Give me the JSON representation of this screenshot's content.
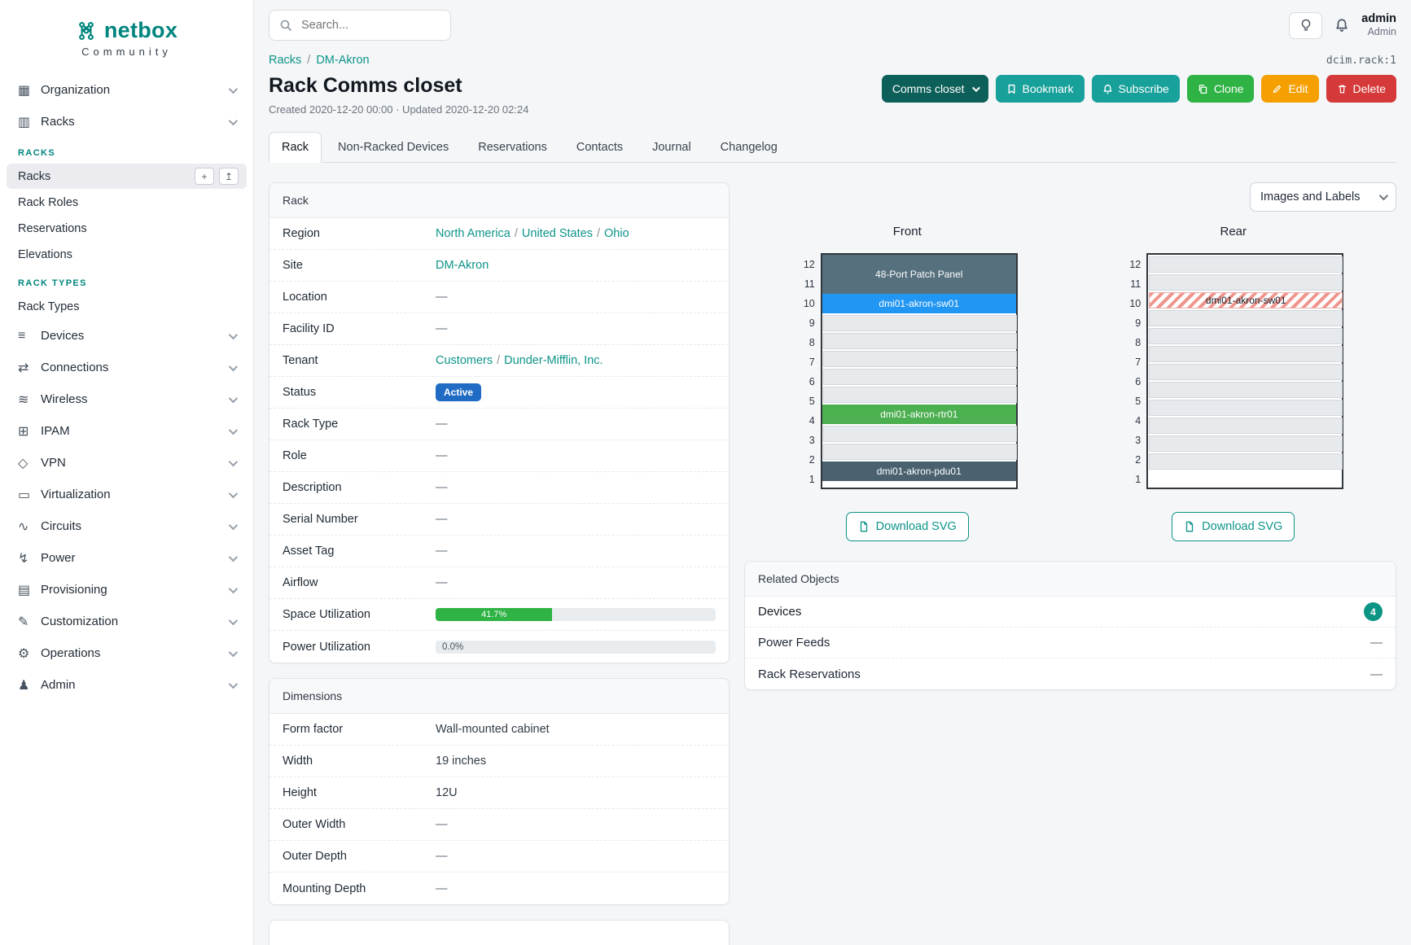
{
  "theme": {
    "brand_teal": "#00857e",
    "link_teal": "#0d9488",
    "status_active_blue": "#206bc4",
    "progress_green": "#2fb344",
    "button_dark_teal": "#0d5f59",
    "button_teal": "#18a09a",
    "button_green": "#2eb344",
    "button_orange": "#f59f00",
    "button_red": "#d63939",
    "device_count_badge": "#0c9485"
  },
  "brand": {
    "name": "netbox",
    "tagline": "Community"
  },
  "topbar": {
    "search_placeholder": "Search...",
    "user_name": "admin",
    "user_role": "Admin"
  },
  "sidebar": {
    "items": [
      {
        "label": "Organization",
        "icon": "▦"
      },
      {
        "label": "Racks",
        "icon": "▥"
      },
      {
        "label": "Devices",
        "icon": "≡"
      },
      {
        "label": "Connections",
        "icon": "⇄"
      },
      {
        "label": "Wireless",
        "icon": "≋"
      },
      {
        "label": "IPAM",
        "icon": "⊞"
      },
      {
        "label": "VPN",
        "icon": "◇"
      },
      {
        "label": "Virtualization",
        "icon": "▭"
      },
      {
        "label": "Circuits",
        "icon": "∿"
      },
      {
        "label": "Power",
        "icon": "↯"
      },
      {
        "label": "Provisioning",
        "icon": "▤"
      },
      {
        "label": "Customization",
        "icon": "✎"
      },
      {
        "label": "Operations",
        "icon": "⚙"
      },
      {
        "label": "Admin",
        "icon": "♟"
      }
    ],
    "racks_section": {
      "heading": "RACKS",
      "items": [
        {
          "label": "Racks",
          "active": true
        },
        {
          "label": "Rack Roles"
        },
        {
          "label": "Reservations"
        },
        {
          "label": "Elevations"
        }
      ],
      "add_glyph": "+",
      "import_glyph": "↥"
    },
    "rack_types_section": {
      "heading": "RACK TYPES",
      "items": [
        {
          "label": "Rack Types"
        }
      ]
    }
  },
  "header": {
    "breadcrumb": {
      "items": [
        "Racks",
        "DM-Akron"
      ],
      "separator": "/"
    },
    "object_ref": "dcim.rack:1",
    "title": "Rack Comms closet",
    "meta": "Created 2020-12-20 00:00 · Updated 2020-12-20 02:24",
    "buttons": {
      "context": "Comms closet",
      "bookmark": "Bookmark",
      "subscribe": "Subscribe",
      "clone": "Clone",
      "edit": "Edit",
      "delete": "Delete"
    },
    "tabs": [
      {
        "label": "Rack",
        "active": true
      },
      {
        "label": "Non-Racked Devices"
      },
      {
        "label": "Reservations"
      },
      {
        "label": "Contacts"
      },
      {
        "label": "Journal"
      },
      {
        "label": "Changelog"
      }
    ]
  },
  "rack_panel": {
    "title": "Rack",
    "link_separator": "/",
    "rows": {
      "region": {
        "label": "Region",
        "links": [
          "North America",
          "United States",
          "Ohio"
        ]
      },
      "site": {
        "label": "Site",
        "link": "DM-Akron"
      },
      "location": {
        "label": "Location",
        "value": "—"
      },
      "facility_id": {
        "label": "Facility ID",
        "value": "—"
      },
      "tenant": {
        "label": "Tenant",
        "links": [
          "Customers",
          "Dunder-Mifflin, Inc."
        ]
      },
      "status": {
        "label": "Status",
        "badge": "Active"
      },
      "rack_type": {
        "label": "Rack Type",
        "value": "—"
      },
      "role": {
        "label": "Role",
        "value": "—"
      },
      "description": {
        "label": "Description",
        "value": "—"
      },
      "serial_number": {
        "label": "Serial Number",
        "value": "—"
      },
      "asset_tag": {
        "label": "Asset Tag",
        "value": "—"
      },
      "airflow": {
        "label": "Airflow",
        "value": "—"
      },
      "space_utilization": {
        "label": "Space Utilization",
        "percent": 41.7,
        "display": "41.7%"
      },
      "power_utilization": {
        "label": "Power Utilization",
        "percent": 0,
        "display": "0.0%"
      }
    }
  },
  "dimensions_panel": {
    "title": "Dimensions",
    "rows": {
      "form_factor": {
        "label": "Form factor",
        "value": "Wall-mounted cabinet"
      },
      "width": {
        "label": "Width",
        "value": "19 inches"
      },
      "height": {
        "label": "Height",
        "value": "12U"
      },
      "outer_width": {
        "label": "Outer Width",
        "value": "—"
      },
      "outer_depth": {
        "label": "Outer Depth",
        "value": "—"
      },
      "mounting_depth": {
        "label": "Mounting Depth",
        "value": "—"
      }
    }
  },
  "elevations": {
    "view_mode": "Images and Labels",
    "front": {
      "title": "Front",
      "download_label": "Download SVG",
      "units": [
        12,
        11,
        10,
        9,
        8,
        7,
        6,
        5,
        4,
        3,
        2,
        1
      ],
      "slots": [
        {
          "u": 12,
          "span": 2,
          "kind": "device",
          "label": "48-Port Patch Panel",
          "color": "#56707e"
        },
        {
          "u": 10,
          "span": 1,
          "kind": "device",
          "label": "dmi01-akron-sw01",
          "color": "#2196f3"
        },
        {
          "u": 9,
          "kind": "empty"
        },
        {
          "u": 8,
          "kind": "empty"
        },
        {
          "u": 7,
          "kind": "empty"
        },
        {
          "u": 6,
          "kind": "empty"
        },
        {
          "u": 5,
          "kind": "empty"
        },
        {
          "u": 4,
          "span": 1,
          "kind": "device",
          "label": "dmi01-akron-rtr01",
          "color": "#4caf50"
        },
        {
          "u": 3,
          "kind": "empty"
        },
        {
          "u": 2,
          "kind": "empty"
        },
        {
          "u": 1,
          "span": 1,
          "kind": "device",
          "label": "dmi01-akron-pdu01",
          "color": "#4a626f"
        }
      ]
    },
    "rear": {
      "title": "Rear",
      "download_label": "Download SVG",
      "units": [
        12,
        11,
        10,
        9,
        8,
        7,
        6,
        5,
        4,
        3,
        2,
        1
      ],
      "slots": [
        {
          "u": 12,
          "kind": "empty"
        },
        {
          "u": 11,
          "kind": "empty"
        },
        {
          "u": 10,
          "span": 1,
          "kind": "hatched",
          "label": "dmi01-akron-sw01"
        },
        {
          "u": 9,
          "kind": "empty"
        },
        {
          "u": 8,
          "kind": "empty"
        },
        {
          "u": 7,
          "kind": "empty"
        },
        {
          "u": 6,
          "kind": "empty"
        },
        {
          "u": 5,
          "kind": "empty"
        },
        {
          "u": 4,
          "kind": "empty"
        },
        {
          "u": 3,
          "kind": "empty"
        },
        {
          "u": 2,
          "kind": "empty"
        },
        {
          "u": 1,
          "kind": "empty"
        }
      ]
    }
  },
  "related_panel": {
    "title": "Related Objects",
    "rows": {
      "devices": {
        "label": "Devices",
        "count": "4"
      },
      "power_feeds": {
        "label": "Power Feeds",
        "value": "—"
      },
      "rack_reservations": {
        "label": "Rack Reservations",
        "value": "—"
      }
    }
  }
}
